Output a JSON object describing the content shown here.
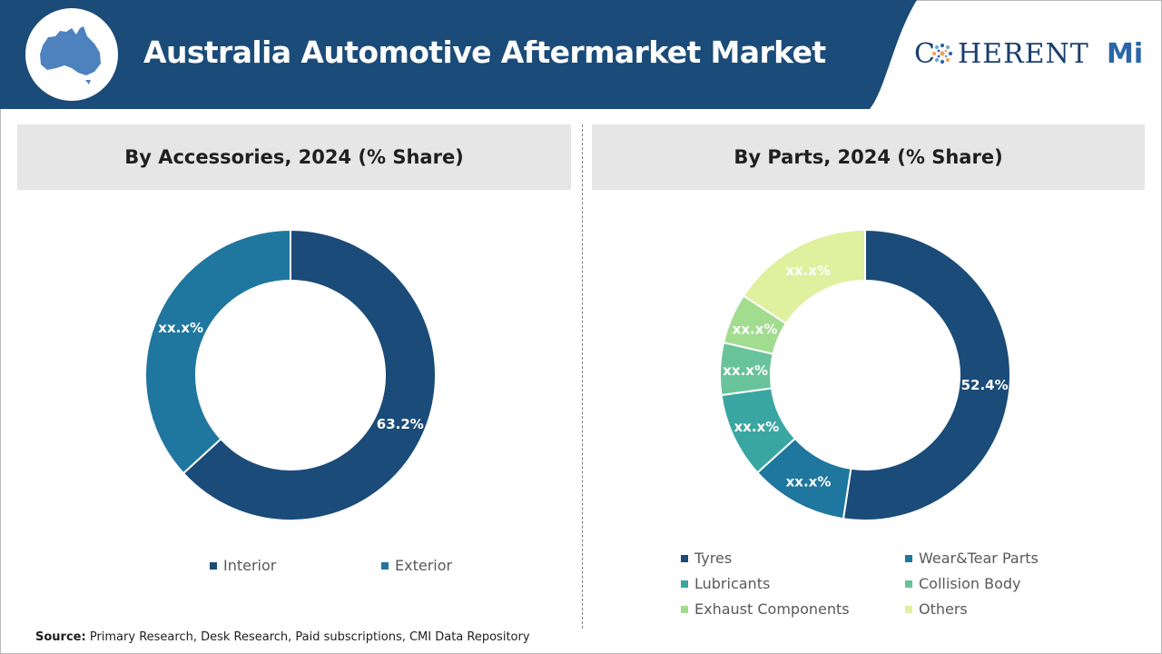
{
  "header": {
    "title": "Australia Automotive Aftermarket Market",
    "logo_left": "C",
    "logo_right": "HERENT",
    "logo_accent": "Mi",
    "colors": {
      "banner": "#1b4b78",
      "logo_blue": "#1a3f6e"
    },
    "icon": "australia-map-icon"
  },
  "chart_data": [
    {
      "type": "donut",
      "title": "By Accessories, 2024 (% Share)",
      "categories": [
        "Interior",
        "Exterior"
      ],
      "values": [
        63.2,
        36.8
      ],
      "labels": [
        "63.2%",
        "xx.x%"
      ],
      "colors": [
        "#1b4b78",
        "#1f769e"
      ],
      "legend": "bottom"
    },
    {
      "type": "donut",
      "title": "By Parts, 2024 (% Share)",
      "categories": [
        "Tyres",
        "Wear&Tear Parts",
        "Lubricants",
        "Collision Body",
        "Exhaust Components",
        "Others"
      ],
      "values": [
        52.4,
        10.9,
        9.5,
        5.8,
        5.6,
        15.8
      ],
      "labels": [
        "52.4%",
        "xx.x%",
        "xx.x%",
        "xx.x%",
        "xx.x%",
        "xx.x%"
      ],
      "colors": [
        "#1b4b78",
        "#1f769e",
        "#3aa6a2",
        "#69c39a",
        "#a2dc8f",
        "#dff09f"
      ],
      "legend": "bottom"
    }
  ],
  "source": {
    "label": "Source:",
    "text": "Primary Research, Desk Research, Paid subscriptions, CMI Data Repository"
  }
}
